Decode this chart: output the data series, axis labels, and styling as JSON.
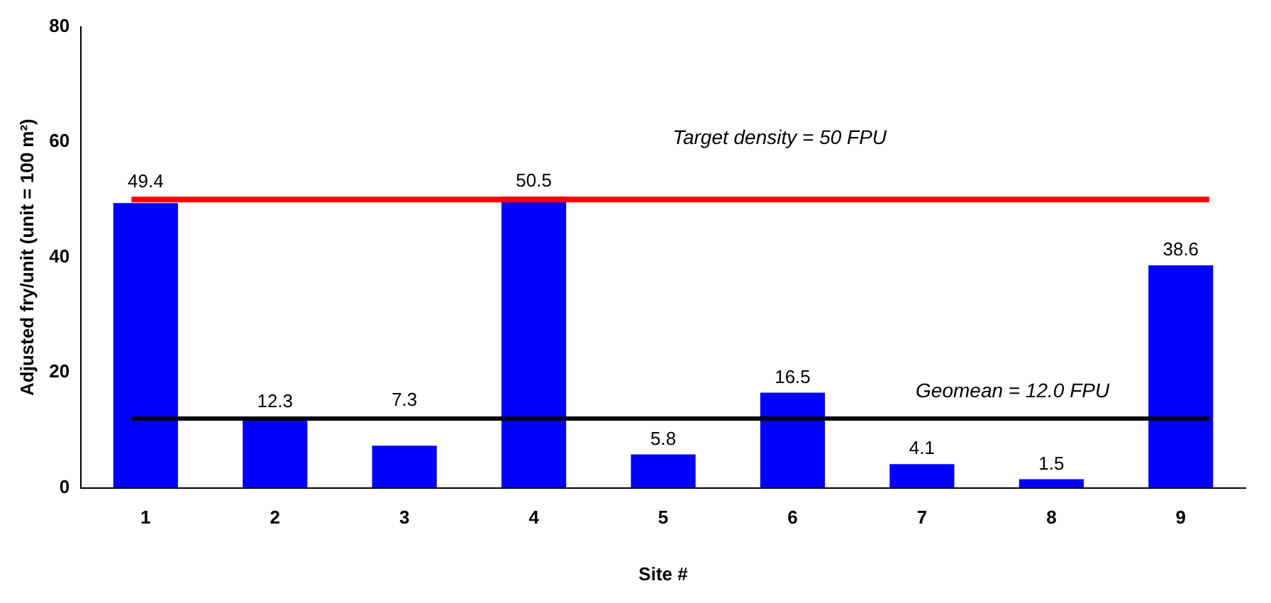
{
  "chart_data": {
    "type": "bar",
    "xlabel": "Site #",
    "ylabel": "Adjusted fry/unit (unit = 100 m²)",
    "categories": [
      "1",
      "2",
      "3",
      "4",
      "5",
      "6",
      "7",
      "8",
      "9"
    ],
    "values": [
      49.4,
      12.3,
      7.3,
      50.5,
      5.8,
      16.5,
      4.1,
      1.5,
      38.6
    ],
    "color": "#0000ff",
    "data_labels": true,
    "ylim": [
      0,
      80
    ],
    "yticks": [
      0,
      20,
      40,
      60,
      80
    ],
    "grid": false,
    "legend": false,
    "ref_lines": [
      {
        "axis": "y",
        "value": 50,
        "label": "Target density = 50 FPU",
        "color": "#ff0000"
      },
      {
        "axis": "y",
        "value": 12,
        "label": "Geomean = 12.0 FPU",
        "color": "#000000"
      }
    ]
  }
}
